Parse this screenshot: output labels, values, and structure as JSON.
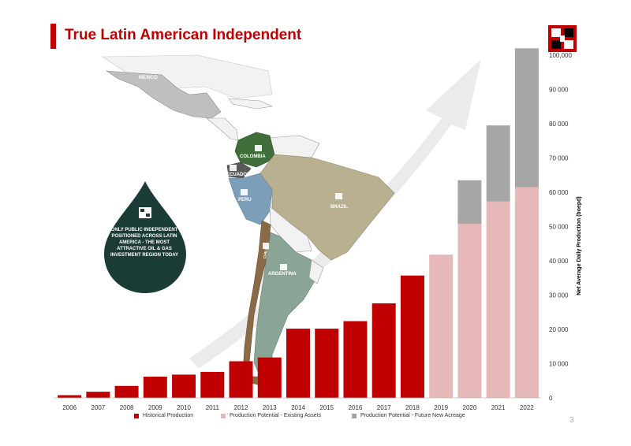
{
  "slide": {
    "title": "True Latin American Independent",
    "page_number": "3"
  },
  "map": {
    "countries": {
      "mexico": "MEXICO",
      "colombia": "COLOMBIA",
      "ecuador": "ECUADOR",
      "peru": "PERU",
      "brazil": "BRAZIL",
      "chile": "CHILE",
      "argentina": "ARGENTINA"
    },
    "callout": "ONLY PUBLIC INDEPENDENT POSITIONED ACROSS LATIN AMERICA - THE MOST ATTRACTIVE OIL & GAS INVESTMENT REGION TODAY"
  },
  "colors": {
    "historical": "#c00000",
    "existing": "#e6b8b7",
    "new": "#a6a6a6",
    "title": "#c00000",
    "drop": "#1b3b36"
  },
  "chart_data": {
    "type": "bar",
    "stacked": true,
    "categories": [
      "2006",
      "2007",
      "2008",
      "2009",
      "2010",
      "2011",
      "2012",
      "2013",
      "2014",
      "2015",
      "2016",
      "2017",
      "2018",
      "2019",
      "2020",
      "2021",
      "2022"
    ],
    "ylabel": "Net Average Daily Production (boepd)",
    "ylim": [
      0,
      100000
    ],
    "yticks": [
      "0",
      "10 000",
      "20 000",
      "30 000",
      "40 000",
      "50 000",
      "60 000",
      "70 000",
      "80 000",
      "90 000",
      "100,000"
    ],
    "series": [
      {
        "name": "Historical Production",
        "color": "#c00000",
        "values": [
          800,
          1800,
          3500,
          6200,
          6800,
          7600,
          10700,
          11800,
          20200,
          20200,
          22400,
          27600,
          35700,
          0,
          0,
          0,
          0
        ]
      },
      {
        "name": "Production Potential - Existing Assets",
        "color": "#e6b8b7",
        "values": [
          0,
          0,
          0,
          0,
          0,
          0,
          0,
          0,
          0,
          0,
          0,
          0,
          0,
          41800,
          50800,
          57300,
          61500
        ]
      },
      {
        "name": "Production Potential - Future New Acreage",
        "color": "#a6a6a6",
        "values": [
          0,
          0,
          0,
          0,
          0,
          0,
          0,
          0,
          0,
          0,
          0,
          0,
          0,
          0,
          12700,
          22200,
          40500
        ]
      }
    ],
    "legend_position": "bottom",
    "grid": false
  }
}
